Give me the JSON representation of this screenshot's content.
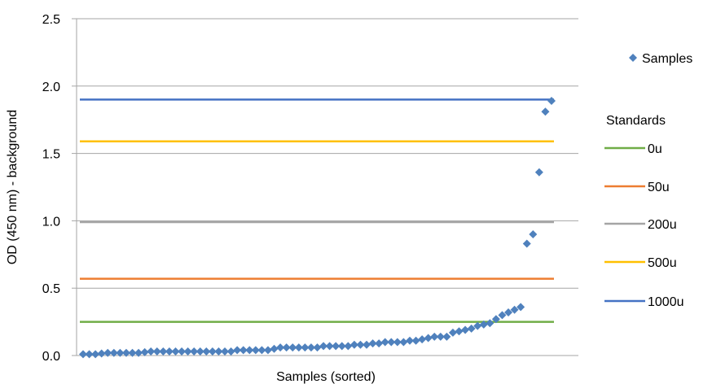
{
  "chart_data": {
    "type": "scatter",
    "title": "",
    "xlabel": "Samples (sorted)",
    "ylabel": "OD (450 nm) - background",
    "ylim": [
      0,
      2.5
    ],
    "yticks": [
      0.0,
      0.5,
      1.0,
      1.5,
      2.0,
      2.5
    ],
    "ytick_labels": [
      "0.0",
      "0.5",
      "1.0",
      "1.5",
      "2.0",
      "2.5"
    ],
    "grid": "horizontal",
    "legend_position": "right",
    "series": [
      {
        "name": "Samples",
        "marker": "diamond",
        "color": "#4F81BD",
        "values": [
          0.01,
          0.01,
          0.01,
          0.015,
          0.02,
          0.02,
          0.02,
          0.02,
          0.02,
          0.02,
          0.025,
          0.03,
          0.03,
          0.03,
          0.03,
          0.03,
          0.03,
          0.03,
          0.03,
          0.03,
          0.03,
          0.03,
          0.03,
          0.03,
          0.03,
          0.04,
          0.04,
          0.04,
          0.04,
          0.04,
          0.04,
          0.05,
          0.06,
          0.06,
          0.06,
          0.06,
          0.06,
          0.06,
          0.06,
          0.07,
          0.07,
          0.07,
          0.07,
          0.07,
          0.08,
          0.08,
          0.08,
          0.09,
          0.09,
          0.1,
          0.1,
          0.1,
          0.1,
          0.11,
          0.11,
          0.12,
          0.13,
          0.14,
          0.14,
          0.14,
          0.17,
          0.18,
          0.19,
          0.2,
          0.22,
          0.23,
          0.24,
          0.27,
          0.3,
          0.32,
          0.34,
          0.36,
          0.83,
          0.9,
          1.36,
          1.81,
          1.89
        ]
      }
    ],
    "standards_title": "Standards",
    "standards": [
      {
        "name": "0u",
        "value": 0.25,
        "color": "#70AD47"
      },
      {
        "name": "50u",
        "value": 0.57,
        "color": "#ED7D31"
      },
      {
        "name": "200u",
        "value": 0.99,
        "color": "#A5A5A5"
      },
      {
        "name": "500u",
        "value": 1.59,
        "color": "#FFC000"
      },
      {
        "name": "1000u",
        "value": 1.9,
        "color": "#4472C4"
      }
    ]
  }
}
